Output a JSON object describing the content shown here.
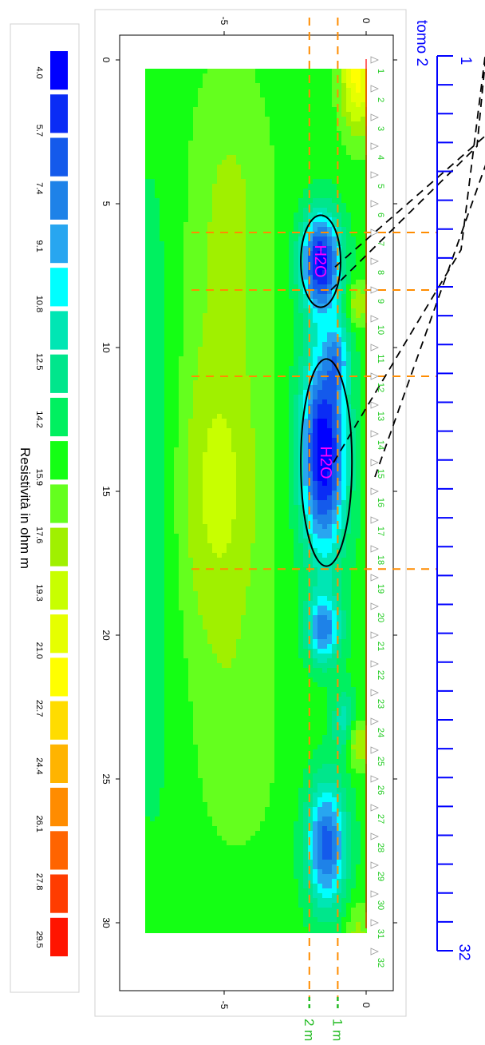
{
  "chart_data": {
    "type": "heatmap",
    "title": "tomo 2",
    "legend": {
      "title": "Resistività in ohm m",
      "levels": [
        4.0,
        5.7,
        7.4,
        9.1,
        10.8,
        12.5,
        14.2,
        15.9,
        17.6,
        19.3,
        21.0,
        22.7,
        24.4,
        26.1,
        27.8,
        29.5
      ],
      "level_labels": [
        "4.0",
        "5.7",
        "7.4",
        "9.1",
        "10.8",
        "12.5",
        "14.2",
        "15.9",
        "17.6",
        "19.3",
        "21.0",
        "22.7",
        "24.4",
        "26.1",
        "27.8",
        "29.5"
      ],
      "colors": [
        "#0000ff",
        "#0a2cf5",
        "#145aeb",
        "#1e82e8",
        "#28a6f0",
        "#00ffff",
        "#00e6b4",
        "#00e68c",
        "#00f060",
        "#14ff14",
        "#64ff1e",
        "#a0f000",
        "#c8ff00",
        "#e6ff00",
        "#ffff00",
        "#ffdc00",
        "#ffb400",
        "#ff8c00",
        "#ff6400",
        "#ff3c00",
        "#ff1400"
      ]
    },
    "x_axis": {
      "label": "",
      "ticks": [
        0,
        5,
        10,
        15,
        20,
        25,
        30
      ],
      "tick_labels": [
        "0",
        "5",
        "10",
        "15",
        "20",
        "25",
        "30"
      ],
      "range": [
        -0.3,
        31.5
      ]
    },
    "y_axis": {
      "label": "",
      "ticks": [
        0,
        -5
      ],
      "tick_labels": [
        "0",
        "-5"
      ],
      "range": [
        -8.3,
        0.8
      ]
    },
    "electrodes": {
      "labels": [
        "1",
        "2",
        "3",
        "4",
        "5",
        "6",
        "7",
        "8",
        "9",
        "10",
        "11",
        "12",
        "13",
        "14",
        "15",
        "16",
        "17",
        "18",
        "19",
        "20",
        "21",
        "22",
        "23",
        "24",
        "25",
        "26",
        "27",
        "28",
        "29",
        "30",
        "31",
        "32"
      ]
    },
    "anomalies": [
      {
        "label": "H2O",
        "center_x": 7.0,
        "center_y": -1.6,
        "half_length": 1.6,
        "half_width": 0.7
      },
      {
        "label": "H2O",
        "center_x": 14.0,
        "center_y": -1.4,
        "half_length": 3.6,
        "half_width": 0.9
      }
    ],
    "depth_lines": [
      {
        "depth": -1.0,
        "label": "1 m"
      },
      {
        "depth": -2.0,
        "label": "2 m"
      }
    ],
    "section_marks": [
      6.0,
      8.0,
      11.0,
      17.7
    ],
    "profile_scale": {
      "start_label": "1",
      "end_label": "32",
      "label_color": "#0000ff"
    },
    "colors": {
      "electrode_text": "#22cc22",
      "surface_line": "#ff0000",
      "guide_line": "#ff8c00",
      "anomaly_text": "#ff00ff",
      "scale_color": "#0000ff",
      "depth_label_color": "#22bb22"
    }
  }
}
